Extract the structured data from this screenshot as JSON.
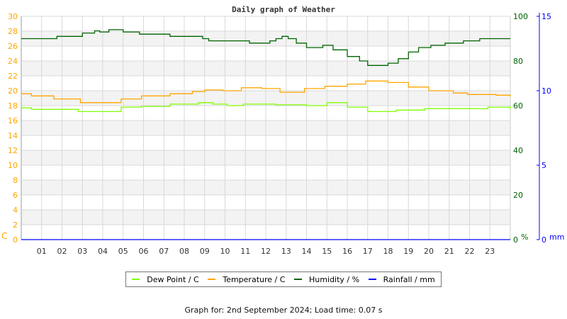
{
  "chart_data": {
    "type": "line",
    "title": "Daily graph of Weather",
    "x_ticks": [
      "01",
      "02",
      "03",
      "04",
      "05",
      "06",
      "07",
      "08",
      "09",
      "10",
      "11",
      "12",
      "13",
      "14",
      "15",
      "16",
      "17",
      "18",
      "19",
      "20",
      "21",
      "22",
      "23"
    ],
    "xlim": [
      0,
      24
    ],
    "grid": true,
    "legend_placement": "bottom",
    "axes": {
      "left": {
        "unit": "C",
        "ylim": [
          0,
          30
        ],
        "ticks": [
          0,
          2,
          4,
          6,
          8,
          10,
          12,
          14,
          16,
          18,
          20,
          22,
          24,
          26,
          28,
          30
        ],
        "color": "#ffa500"
      },
      "right_humidity": {
        "unit": "%",
        "ylim": [
          0,
          100
        ],
        "ticks": [
          0,
          20,
          40,
          60,
          80,
          100
        ],
        "color": "#006400"
      },
      "right_rainfall": {
        "unit": "mm",
        "ylim": [
          0,
          15
        ],
        "ticks": [
          0,
          5,
          10,
          15
        ],
        "color": "#0000ff"
      }
    },
    "series": [
      {
        "name": "Dew Point / C",
        "axis": "left",
        "color": "#80ff00",
        "points": [
          [
            0,
            17.7
          ],
          [
            0.5,
            17.5
          ],
          [
            1.7,
            17.5
          ],
          [
            2.8,
            17.2
          ],
          [
            4.2,
            17.2
          ],
          [
            4.9,
            17.8
          ],
          [
            5.9,
            17.9
          ],
          [
            7.3,
            18.2
          ],
          [
            8.7,
            18.4
          ],
          [
            9.4,
            18.2
          ],
          [
            10.1,
            18.0
          ],
          [
            10.9,
            18.2
          ],
          [
            12.5,
            18.1
          ],
          [
            14,
            18.0
          ],
          [
            15,
            18.4
          ],
          [
            16,
            17.8
          ],
          [
            17,
            17.2
          ],
          [
            18.4,
            17.4
          ],
          [
            19.8,
            17.6
          ],
          [
            21.2,
            17.6
          ],
          [
            22.9,
            17.8
          ],
          [
            24,
            17.5
          ]
        ]
      },
      {
        "name": "Temperature / C",
        "axis": "left",
        "color": "#ffa500",
        "points": [
          [
            0,
            19.6
          ],
          [
            0.5,
            19.3
          ],
          [
            1.6,
            18.9
          ],
          [
            2.9,
            18.4
          ],
          [
            4.2,
            18.4
          ],
          [
            4.9,
            18.9
          ],
          [
            5.9,
            19.3
          ],
          [
            7.3,
            19.6
          ],
          [
            8.4,
            19.9
          ],
          [
            9.0,
            20.1
          ],
          [
            9.9,
            20.0
          ],
          [
            10.8,
            20.4
          ],
          [
            11.8,
            20.3
          ],
          [
            12.7,
            19.8
          ],
          [
            13.9,
            20.3
          ],
          [
            14.9,
            20.6
          ],
          [
            16,
            20.9
          ],
          [
            16.9,
            21.3
          ],
          [
            18,
            21.1
          ],
          [
            19,
            20.5
          ],
          [
            20,
            20.0
          ],
          [
            21.2,
            19.7
          ],
          [
            21.9,
            19.5
          ],
          [
            23.3,
            19.4
          ],
          [
            24,
            19.2
          ]
        ]
      },
      {
        "name": "Humidity / %",
        "axis": "right_humidity",
        "color": "#006400",
        "points": [
          [
            0,
            90
          ],
          [
            1.75,
            91
          ],
          [
            3,
            92.5
          ],
          [
            3.6,
            93.5
          ],
          [
            3.85,
            93
          ],
          [
            4.3,
            94
          ],
          [
            5,
            93
          ],
          [
            5.8,
            92
          ],
          [
            7.3,
            91
          ],
          [
            8.9,
            90
          ],
          [
            9.2,
            89
          ],
          [
            11.2,
            88
          ],
          [
            12.2,
            89
          ],
          [
            12.5,
            90
          ],
          [
            12.8,
            91
          ],
          [
            13.1,
            90
          ],
          [
            13.5,
            88
          ],
          [
            14,
            86
          ],
          [
            14.8,
            87
          ],
          [
            15.3,
            85
          ],
          [
            16,
            82
          ],
          [
            16.6,
            80
          ],
          [
            17,
            78
          ],
          [
            18,
            79
          ],
          [
            18.5,
            81
          ],
          [
            19,
            84
          ],
          [
            19.5,
            86
          ],
          [
            20.1,
            87
          ],
          [
            20.8,
            88
          ],
          [
            21.7,
            89
          ],
          [
            22.5,
            90
          ],
          [
            24,
            90
          ]
        ]
      },
      {
        "name": "Rainfall / mm",
        "axis": "right_rainfall",
        "color": "#0000ff",
        "points": [
          [
            0,
            0
          ],
          [
            24,
            0
          ]
        ]
      }
    ]
  },
  "footer": "Graph for: 2nd September 2024; Load time: 0.07 s"
}
